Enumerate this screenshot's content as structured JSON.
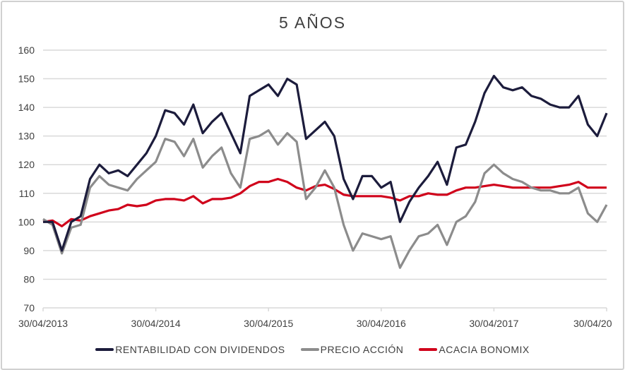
{
  "chart_data": {
    "type": "line",
    "title": "5 AÑOS",
    "xlabel": "",
    "ylabel": "",
    "ylim": [
      70,
      160
    ],
    "yticks": [
      "70",
      "80",
      "90",
      "100",
      "110",
      "120",
      "130",
      "140",
      "150",
      "160"
    ],
    "xticks": [
      "30/04/2013",
      "30/04/2014",
      "30/04/2015",
      "30/04/2016",
      "30/04/2017",
      "30/04/20"
    ],
    "grid": true,
    "legend_position": "bottom",
    "x": [
      "2013-04",
      "2013-05",
      "2013-06",
      "2013-07",
      "2013-08",
      "2013-09",
      "2013-10",
      "2013-11",
      "2013-12",
      "2014-01",
      "2014-02",
      "2014-03",
      "2014-04",
      "2014-05",
      "2014-06",
      "2014-07",
      "2014-08",
      "2014-09",
      "2014-10",
      "2014-11",
      "2014-12",
      "2015-01",
      "2015-02",
      "2015-03",
      "2015-04",
      "2015-05",
      "2015-06",
      "2015-07",
      "2015-08",
      "2015-09",
      "2015-10",
      "2015-11",
      "2015-12",
      "2016-01",
      "2016-02",
      "2016-03",
      "2016-04",
      "2016-05",
      "2016-06",
      "2016-07",
      "2016-08",
      "2016-09",
      "2016-10",
      "2016-11",
      "2016-12",
      "2017-01",
      "2017-02",
      "2017-03",
      "2017-04",
      "2017-05",
      "2017-06",
      "2017-07",
      "2017-08",
      "2017-09",
      "2017-10",
      "2017-11",
      "2017-12",
      "2018-01",
      "2018-02",
      "2018-03",
      "2018-04"
    ],
    "series": [
      {
        "name": "RENTABILIDAD CON DIVIDENDOS",
        "color": "#1c1c3c",
        "values": [
          100,
          100,
          90,
          100,
          102,
          115,
          120,
          117,
          118,
          116,
          120,
          124,
          130,
          139,
          138,
          134,
          141,
          131,
          135,
          138,
          131,
          124,
          144,
          146,
          148,
          144,
          150,
          148,
          129,
          132,
          135,
          130,
          115,
          108,
          116,
          116,
          112,
          114,
          100,
          107,
          112,
          116,
          121,
          113,
          126,
          127,
          135,
          145,
          151,
          147,
          146,
          147,
          144,
          143,
          141,
          140,
          140,
          144,
          134,
          130,
          138
        ]
      },
      {
        "name": "PRECIO ACCIÓN",
        "color": "#8c8c8c",
        "values": [
          101,
          99,
          89,
          98,
          99,
          112,
          116,
          113,
          112,
          111,
          115,
          118,
          121,
          129,
          128,
          123,
          129,
          119,
          123,
          126,
          117,
          112,
          129,
          130,
          132,
          127,
          131,
          128,
          108,
          112,
          118,
          112,
          99,
          90,
          96,
          95,
          94,
          95,
          84,
          90,
          95,
          96,
          99,
          92,
          100,
          102,
          107,
          117,
          120,
          117,
          115,
          114,
          112,
          111,
          111,
          110,
          110,
          112,
          103,
          100,
          106
        ]
      },
      {
        "name": "ACACIA BONOMIX",
        "color": "#d0021b",
        "values": [
          100,
          100.5,
          98.5,
          101,
          100.5,
          102,
          103,
          104,
          104.5,
          106,
          105.5,
          106,
          107.5,
          108,
          108,
          107.5,
          109,
          106.5,
          108,
          108,
          108.5,
          110,
          112.5,
          114,
          114,
          115,
          114,
          112,
          111,
          112.5,
          113,
          111.5,
          109.5,
          109,
          109,
          109,
          109,
          108.5,
          107.5,
          109,
          109,
          110,
          109.5,
          109.5,
          111,
          112,
          112,
          112.5,
          113,
          112.5,
          112,
          112,
          112,
          112,
          112,
          112.5,
          113,
          114,
          112,
          112,
          112
        ]
      }
    ]
  }
}
